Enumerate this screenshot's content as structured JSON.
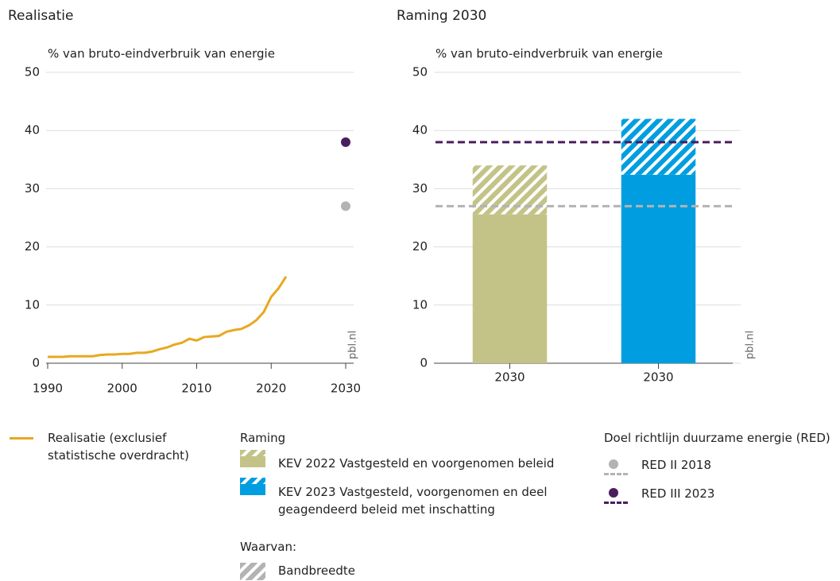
{
  "chart_data": [
    {
      "type": "line",
      "title": "Realisatie",
      "ylabel": "% van bruto-eindverbruik van energie",
      "source": "pbl.nl",
      "x": [
        1990,
        1991,
        1992,
        1993,
        1994,
        1995,
        1996,
        1997,
        1998,
        1999,
        2000,
        2001,
        2002,
        2003,
        2004,
        2005,
        2006,
        2007,
        2008,
        2009,
        2010,
        2011,
        2012,
        2013,
        2014,
        2015,
        2016,
        2017,
        2018,
        2019,
        2020,
        2021,
        2022
      ],
      "series": [
        {
          "name": "Realisatie (exclusief statistische overdracht)",
          "color": "#e8a820",
          "values": [
            1.1,
            1.1,
            1.1,
            1.2,
            1.2,
            1.2,
            1.2,
            1.4,
            1.5,
            1.5,
            1.6,
            1.6,
            1.8,
            1.8,
            2.0,
            2.4,
            2.7,
            3.2,
            3.5,
            4.2,
            3.9,
            4.5,
            4.6,
            4.7,
            5.4,
            5.7,
            5.9,
            6.5,
            7.4,
            8.8,
            11.4,
            12.9,
            14.9
          ]
        }
      ],
      "xlim": [
        1990,
        2030
      ],
      "xticks": [
        1990,
        2000,
        2010,
        2020,
        2030
      ],
      "ylim": [
        0,
        50
      ],
      "yticks": [
        0,
        10,
        20,
        30,
        40,
        50
      ],
      "grid": true
    },
    {
      "type": "bar",
      "title": "Raming 2030",
      "ylabel": "% van bruto-eindverbruik van energie",
      "source": "pbl.nl",
      "categories": [
        "2030",
        "2030"
      ],
      "series": [
        {
          "name": "KEV 2022 Vastgesteld en voorgenomen beleid",
          "color": "#c3c388",
          "values": [
            25.6,
            null
          ],
          "band": [
            8.4,
            null
          ]
        },
        {
          "name": "KEV 2023 Vastgesteld, voorgenomen en deel geagendeerd beleid met inschatting",
          "color": "#009ee0",
          "values": [
            null,
            32.4
          ],
          "band": [
            null,
            9.6
          ]
        }
      ],
      "ylim": [
        0,
        50
      ],
      "yticks": [
        0,
        10,
        20,
        30,
        40,
        50
      ],
      "grid": true
    }
  ],
  "targets": {
    "title": "Doel richtlijn duurzame energie (RED)",
    "items": [
      {
        "name": "RED II 2018",
        "color": "#b3b3b3",
        "x": 2030,
        "value": 27
      },
      {
        "name": "RED III 2023",
        "color": "#4a1e5c",
        "x": 2030,
        "value": 38
      }
    ]
  },
  "legend": {
    "raming_title": "Raming",
    "band_title": "Waarvan:",
    "band_label": "Bandbreedte"
  }
}
